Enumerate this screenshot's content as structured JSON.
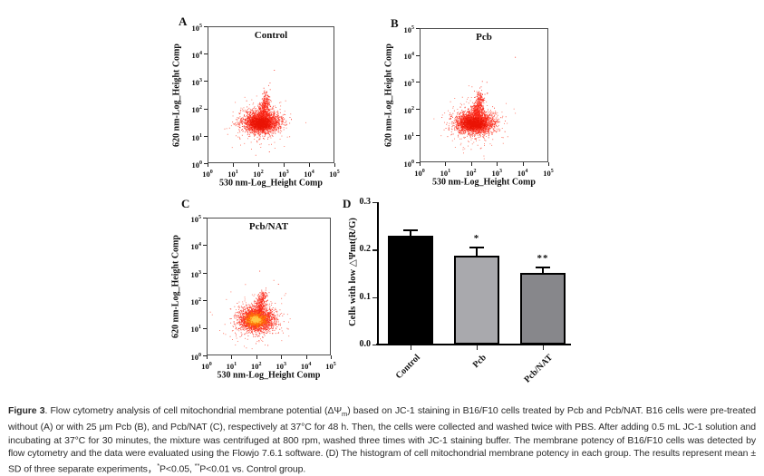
{
  "figure": {
    "caption": {
      "segments": [
        {
          "t": "Figure 3",
          "b": true
        },
        {
          "t": ". Flow cytometry analysis of cell mitochondrial membrane potential (ΔΨ"
        },
        {
          "t": "m",
          "s": "sub"
        },
        {
          "t": ") based on JC-1 staining in B16/F10 cells treated by Pcb and Pcb/NAT. B16 cells were pre-treated without (A) or with 25 μm Pcb (B), and Pcb/NAT (C), respectively at 37°C for 48 h. Then, the cells were collected and washed twice with PBS. After adding 0.5 mL JC-1 solution and incubating at 37°C for 30 minutes, the mixture was centrifuged at 800 rpm, washed three times with JC-1 staining buffer. The membrane potency of B16/F10 cells was detected by flow cytometry and the data were evaluated using the Flowjo 7.6.1 software. (D) The histogram of cell mitochondrial membrane potency in each group. The results represent mean ± SD of three separate experiments，"
        },
        {
          "t": "*",
          "s": "sup"
        },
        {
          "t": "P<0.05, "
        },
        {
          "t": "**",
          "s": "sup"
        },
        {
          "t": "P<0.01 vs. Control group."
        }
      ]
    }
  },
  "chart_data": [
    {
      "type": "scatter",
      "panel_label": "A",
      "title": "Control",
      "xlabel": "530 nm-Log_Height Comp",
      "ylabel": "620 nm-Log_Height Comp",
      "x_log_range": [
        0,
        5
      ],
      "y_log_range": [
        0,
        5
      ],
      "tick_exponents": [
        0,
        1,
        2,
        3,
        4,
        5
      ],
      "point_color": "#fb2011",
      "clusters": [
        {
          "cx": 2.1,
          "cy": 1.5,
          "sx": 0.55,
          "sy": 0.42,
          "n": 260,
          "color": "#ff5a42"
        },
        {
          "cx": 2.12,
          "cy": 1.5,
          "sx": 0.34,
          "sy": 0.2,
          "n": 2300,
          "color": "#fb2011"
        },
        {
          "cx": 2.18,
          "cy": 1.95,
          "sx": 0.1,
          "sy": 0.14,
          "n": 200,
          "color": "#fb2011"
        },
        {
          "cx": 2.3,
          "cy": 2.28,
          "sx": 0.08,
          "sy": 0.18,
          "n": 150,
          "color": "#fb2011"
        },
        {
          "cx": 2.07,
          "cy": 1.46,
          "sx": 0.2,
          "sy": 0.11,
          "n": 850,
          "color": "#e81000"
        }
      ],
      "outliers": [
        [
          2.62,
          3.42
        ],
        [
          2.42,
          0.4
        ],
        [
          1.25,
          1.3
        ],
        [
          1.1,
          1.6
        ],
        [
          3.3,
          1.6
        ]
      ]
    },
    {
      "type": "scatter",
      "panel_label": "B",
      "title": "Pcb",
      "xlabel": "530 nm-Log_Height Comp",
      "ylabel": "620 nm-Log_Height Comp",
      "x_log_range": [
        0,
        5
      ],
      "y_log_range": [
        0,
        5
      ],
      "tick_exponents": [
        0,
        1,
        2,
        3,
        4,
        5
      ],
      "point_color": "#fb2011",
      "clusters": [
        {
          "cx": 2.1,
          "cy": 1.48,
          "sx": 0.58,
          "sy": 0.45,
          "n": 280,
          "color": "#ff5a42"
        },
        {
          "cx": 2.12,
          "cy": 1.48,
          "sx": 0.36,
          "sy": 0.2,
          "n": 2500,
          "color": "#fb2011"
        },
        {
          "cx": 2.2,
          "cy": 1.95,
          "sx": 0.1,
          "sy": 0.15,
          "n": 220,
          "color": "#fb2011"
        },
        {
          "cx": 2.33,
          "cy": 2.3,
          "sx": 0.09,
          "sy": 0.2,
          "n": 170,
          "color": "#fb2011"
        },
        {
          "cx": 2.1,
          "cy": 1.44,
          "sx": 0.22,
          "sy": 0.11,
          "n": 900,
          "color": "#e81000"
        }
      ],
      "outliers": [
        [
          3.72,
          3.95
        ],
        [
          2.6,
          3.0
        ],
        [
          2.62,
          2.6
        ],
        [
          2.35,
          0.5
        ],
        [
          2.55,
          0.8
        ],
        [
          1.1,
          1.2
        ]
      ]
    },
    {
      "type": "scatter",
      "panel_label": "C",
      "title": "Pcb/NAT",
      "xlabel": "530 nm-Log_Height Comp",
      "ylabel": "620 nm-Log_Height Comp",
      "x_log_range": [
        0,
        5
      ],
      "y_log_range": [
        0,
        5
      ],
      "tick_exponents": [
        0,
        1,
        2,
        3,
        4,
        5
      ],
      "point_color": "#fb2011",
      "clusters": [
        {
          "cx": 2.0,
          "cy": 1.32,
          "sx": 0.55,
          "sy": 0.42,
          "n": 260,
          "color": "#ff5a42"
        },
        {
          "cx": 2.0,
          "cy": 1.3,
          "sx": 0.34,
          "sy": 0.22,
          "n": 2500,
          "color": "#fb2011"
        },
        {
          "cx": 2.15,
          "cy": 1.85,
          "sx": 0.1,
          "sy": 0.16,
          "n": 200,
          "color": "#fb2011"
        },
        {
          "cx": 2.27,
          "cy": 2.15,
          "sx": 0.08,
          "sy": 0.13,
          "n": 90,
          "color": "#fb2011"
        },
        {
          "cx": 1.97,
          "cy": 1.28,
          "sx": 0.19,
          "sy": 0.11,
          "n": 800,
          "color": "#ff7a00"
        },
        {
          "cx": 1.96,
          "cy": 1.29,
          "sx": 0.1,
          "sy": 0.055,
          "n": 300,
          "color": "#ffd24d"
        }
      ],
      "outliers": [
        [
          2.12,
          3.08
        ],
        [
          2.88,
          2.6
        ],
        [
          3.28,
          0.95
        ],
        [
          2.45,
          0.35
        ],
        [
          1.2,
          1.9
        ]
      ]
    },
    {
      "type": "bar",
      "panel_label": "D",
      "ylabel": "Cells with low △Ψmt(R/G)",
      "categories": [
        "Control",
        "Pcb",
        "Pcb/NAT"
      ],
      "values": [
        0.23,
        0.187,
        0.151
      ],
      "errors": [
        0.012,
        0.02,
        0.013
      ],
      "significance": [
        "",
        "*",
        "**"
      ],
      "bar_colors": [
        "#000000",
        "#a9a9ad",
        "#87878b"
      ],
      "ylim": [
        0,
        0.3
      ],
      "ytick_labels": [
        "0.0",
        "0.1",
        "0.2",
        "0.3"
      ],
      "ytick_values": [
        0,
        0.1,
        0.2,
        0.3
      ]
    }
  ]
}
